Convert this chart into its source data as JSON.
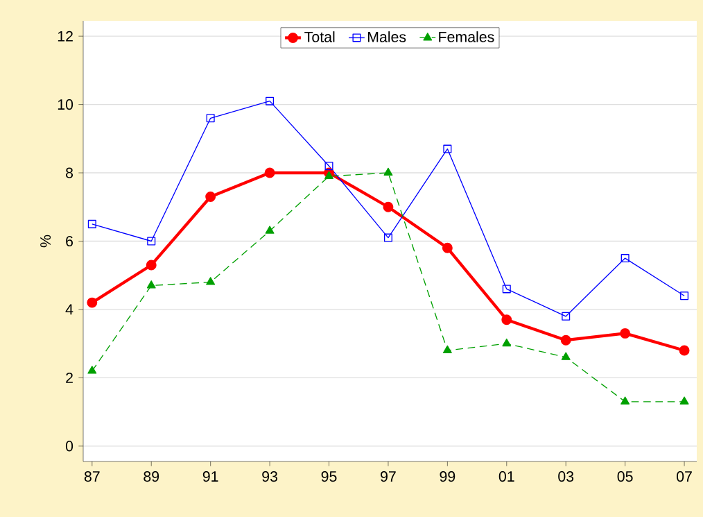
{
  "chart_data": {
    "type": "line",
    "ylabel": "%",
    "categories": [
      "87",
      "89",
      "91",
      "93",
      "95",
      "97",
      "99",
      "01",
      "03",
      "05",
      "07"
    ],
    "series": [
      {
        "name": "Total",
        "color": "#ff0000",
        "marker": "circle",
        "line_style": "solid",
        "values": [
          4.2,
          5.3,
          7.3,
          8.0,
          8.0,
          7.0,
          5.8,
          3.7,
          3.1,
          3.3,
          2.8
        ]
      },
      {
        "name": "Males",
        "color": "#0000ff",
        "marker": "square",
        "line_style": "solid",
        "values": [
          6.5,
          6.0,
          9.6,
          10.1,
          8.2,
          6.1,
          8.7,
          4.6,
          3.8,
          5.5,
          4.4
        ]
      },
      {
        "name": "Females",
        "color": "#00a000",
        "marker": "triangle",
        "line_style": "dashed",
        "values": [
          2.2,
          4.7,
          4.8,
          6.3,
          7.9,
          8.0,
          2.8,
          3.0,
          2.6,
          1.3,
          1.3
        ]
      }
    ],
    "ylim": [
      -0.45,
      12.45
    ],
    "yticks": [
      0,
      2,
      4,
      6,
      8,
      10,
      12
    ],
    "grid": "y",
    "legend": "top"
  }
}
